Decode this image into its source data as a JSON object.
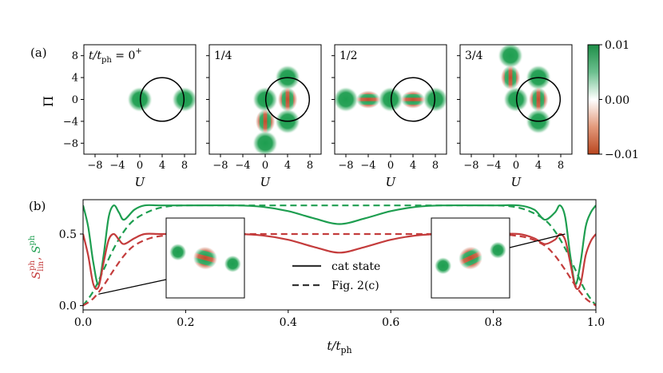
{
  "chart_data": [
    {
      "panel_label": "(a)",
      "type": "heatmap",
      "ylabel": "Π",
      "xlabel": "U",
      "x_ticks": [
        -8,
        -4,
        0,
        4,
        8
      ],
      "y_ticks": [
        -8,
        -4,
        0,
        4,
        8
      ],
      "xlim": [
        -10,
        10
      ],
      "ylim": [
        -10,
        10
      ],
      "tick_labels": [
        "−8",
        "−4",
        "0",
        "4",
        "8"
      ],
      "circle": {
        "center_U": 4,
        "center_Pi": 0,
        "radius": 3.9
      },
      "colorbar": {
        "min": -0.01,
        "max": 0.01,
        "ticks": [
          "0.01",
          "0.00",
          "−0.01"
        ]
      },
      "colors": {
        "positive": "#1e9e50",
        "negative": "#c0502e",
        "zero": "#ffffff"
      },
      "panels": [
        {
          "label_prefix": "t/t",
          "label_sub": "ph",
          "label_value": " = 0",
          "label_sup": "+",
          "blobs": [
            {
              "U": 0,
              "Pi": 0
            },
            {
              "U": 8,
              "Pi": 0
            }
          ],
          "fringes": []
        },
        {
          "label": "1/4",
          "blobs": [
            {
              "U": 0,
              "Pi": 0
            },
            {
              "U": 4,
              "Pi": 4
            },
            {
              "U": 4,
              "Pi": -4
            },
            {
              "U": 0,
              "Pi": -8
            }
          ],
          "fringes": [
            {
              "U": 4,
              "Pi": 0,
              "orient": "vertical"
            },
            {
              "U": 0,
              "Pi": -4,
              "orient": "vertical"
            }
          ]
        },
        {
          "label": "1/2",
          "blobs": [
            {
              "U": -8,
              "Pi": 0
            },
            {
              "U": 0,
              "Pi": 0
            },
            {
              "U": 8,
              "Pi": 0
            }
          ],
          "fringes": [
            {
              "U": -4,
              "Pi": 0,
              "orient": "horizontal"
            },
            {
              "U": 4,
              "Pi": 0,
              "orient": "horizontal"
            }
          ]
        },
        {
          "label": "3/4",
          "blobs": [
            {
              "U": -1,
              "Pi": 8
            },
            {
              "U": 0,
              "Pi": 0
            },
            {
              "U": 4,
              "Pi": 4
            },
            {
              "U": 4,
              "Pi": -4
            }
          ],
          "fringes": [
            {
              "U": -1,
              "Pi": 4,
              "orient": "vertical"
            },
            {
              "U": 4,
              "Pi": 0,
              "orient": "vertical"
            }
          ]
        }
      ]
    },
    {
      "panel_label": "(b)",
      "type": "line",
      "xlabel": "t/t",
      "xlabel_sub": "ph",
      "ylabel_parts": [
        {
          "text": "S",
          "sup": "ph",
          "sub": "lin",
          "color": "#c43c3c"
        },
        {
          "text": ", ",
          "color": "#c43c3c"
        },
        {
          "text": "S",
          "sup": "ph",
          "sub": "",
          "color": "#1e9e50"
        }
      ],
      "xlim": [
        0,
        1
      ],
      "ylim": [
        -0.03,
        0.74
      ],
      "x_ticks": [
        0,
        0.2,
        0.4,
        0.6,
        0.8,
        1.0
      ],
      "x_tick_labels": [
        "0.0",
        "0.2",
        "0.4",
        "0.6",
        "0.8",
        "1.0"
      ],
      "y_ticks": [
        0,
        0.5
      ],
      "y_tick_labels": [
        "0.0",
        "0.5"
      ],
      "legend": [
        {
          "label": "cat state",
          "style": "solid"
        },
        {
          "label": "Fig. 2(c)",
          "style": "dashed"
        }
      ],
      "series": [
        {
          "name": "S_ph (cat state)",
          "color": "#1e9e50",
          "style": "solid",
          "x": [
            0.0,
            0.01,
            0.02,
            0.03,
            0.04,
            0.05,
            0.06,
            0.07,
            0.08,
            0.1,
            0.12,
            0.15,
            0.2,
            0.3,
            0.35,
            0.4,
            0.45,
            0.5,
            0.55,
            0.6,
            0.65,
            0.7,
            0.8,
            0.85,
            0.88,
            0.9,
            0.92,
            0.93,
            0.94,
            0.95,
            0.96,
            0.97,
            0.98,
            0.99,
            1.0
          ],
          "y": [
            0.7,
            0.55,
            0.3,
            0.15,
            0.35,
            0.62,
            0.7,
            0.65,
            0.6,
            0.67,
            0.7,
            0.7,
            0.7,
            0.7,
            0.69,
            0.66,
            0.61,
            0.57,
            0.61,
            0.66,
            0.69,
            0.7,
            0.7,
            0.7,
            0.67,
            0.6,
            0.65,
            0.7,
            0.62,
            0.35,
            0.15,
            0.3,
            0.55,
            0.65,
            0.7
          ]
        },
        {
          "name": "S_ph (Fig. 2(c))",
          "color": "#1e9e50",
          "style": "dashed",
          "x": [
            0.0,
            0.02,
            0.04,
            0.06,
            0.08,
            0.1,
            0.13,
            0.16,
            0.2,
            0.3,
            0.5,
            0.7,
            0.8,
            0.84,
            0.87,
            0.9,
            0.92,
            0.94,
            0.96,
            0.98,
            1.0
          ],
          "y": [
            0.0,
            0.1,
            0.25,
            0.4,
            0.52,
            0.6,
            0.66,
            0.69,
            0.7,
            0.7,
            0.7,
            0.7,
            0.7,
            0.69,
            0.66,
            0.6,
            0.52,
            0.4,
            0.25,
            0.1,
            0.0
          ]
        },
        {
          "name": "S_lin_ph (cat state)",
          "color": "#c43c3c",
          "style": "solid",
          "x": [
            0.0,
            0.01,
            0.02,
            0.03,
            0.04,
            0.05,
            0.06,
            0.07,
            0.08,
            0.1,
            0.12,
            0.15,
            0.2,
            0.3,
            0.35,
            0.4,
            0.45,
            0.5,
            0.55,
            0.6,
            0.65,
            0.7,
            0.8,
            0.85,
            0.88,
            0.9,
            0.92,
            0.93,
            0.94,
            0.95,
            0.96,
            0.97,
            0.98,
            0.99,
            1.0
          ],
          "y": [
            0.5,
            0.35,
            0.15,
            0.13,
            0.3,
            0.46,
            0.5,
            0.46,
            0.43,
            0.47,
            0.5,
            0.5,
            0.5,
            0.5,
            0.49,
            0.46,
            0.41,
            0.37,
            0.41,
            0.46,
            0.49,
            0.5,
            0.5,
            0.5,
            0.47,
            0.43,
            0.46,
            0.5,
            0.46,
            0.3,
            0.13,
            0.15,
            0.35,
            0.45,
            0.5
          ]
        },
        {
          "name": "S_lin_ph (Fig. 2(c))",
          "color": "#c43c3c",
          "style": "dashed",
          "x": [
            0.0,
            0.02,
            0.04,
            0.06,
            0.08,
            0.1,
            0.13,
            0.16,
            0.2,
            0.3,
            0.5,
            0.7,
            0.8,
            0.84,
            0.87,
            0.9,
            0.92,
            0.94,
            0.96,
            0.98,
            1.0
          ],
          "y": [
            0.0,
            0.05,
            0.14,
            0.25,
            0.35,
            0.42,
            0.47,
            0.49,
            0.5,
            0.5,
            0.5,
            0.5,
            0.5,
            0.49,
            0.47,
            0.42,
            0.35,
            0.25,
            0.14,
            0.05,
            0.0
          ]
        }
      ],
      "insets": [
        {
          "name": "left",
          "points_to_t": 0.03,
          "points_to_S": 0.08,
          "blobs": [
            {
              "U": -7,
              "Pi": 1.5
            },
            {
              "U": 7,
              "Pi": -1.5
            }
          ],
          "fringes": [
            {
              "U": 0,
              "Pi": 0,
              "orient": "tilted-left"
            }
          ]
        },
        {
          "name": "right",
          "points_to_t": 0.94,
          "points_to_S": 0.5,
          "blobs": [
            {
              "U": -7,
              "Pi": -2
            },
            {
              "U": 7,
              "Pi": 2
            }
          ],
          "fringes": [
            {
              "U": 0,
              "Pi": 0,
              "orient": "tilted-right"
            }
          ]
        }
      ]
    }
  ]
}
